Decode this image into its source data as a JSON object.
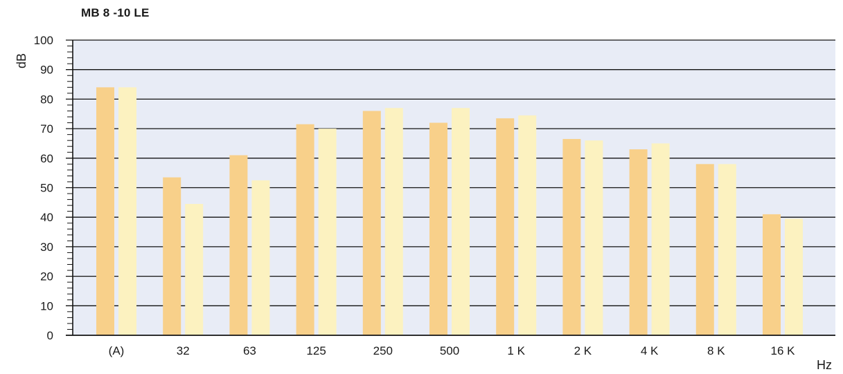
{
  "chart_data": {
    "type": "bar",
    "title": "MB 8 -10 LE",
    "xlabel": "Hz",
    "ylabel": "dB",
    "ylim": [
      0,
      100
    ],
    "yticks": [
      0,
      10,
      20,
      30,
      40,
      50,
      60,
      70,
      80,
      90,
      100
    ],
    "categories": [
      "(A)",
      "32",
      "63",
      "125",
      "250",
      "500",
      "1 K",
      "2 K",
      "4 K",
      "8 K",
      "16 K"
    ],
    "series": [
      {
        "values": [
          84,
          53.5,
          61,
          71.5,
          76,
          72,
          73.5,
          66.5,
          63,
          58,
          41
        ],
        "color": "#f8d08a"
      },
      {
        "values": [
          84,
          44.5,
          52.5,
          70,
          77,
          77,
          74.5,
          66,
          65,
          58,
          39.5
        ],
        "color": "#fcf2c0"
      }
    ],
    "plot_background": "#e8ecf6",
    "grid": true,
    "legend": "none"
  }
}
